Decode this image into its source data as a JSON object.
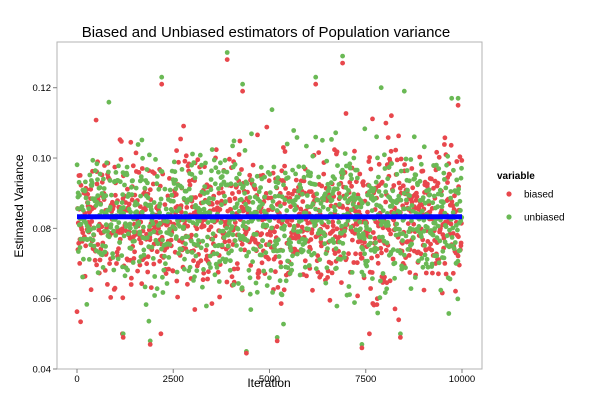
{
  "chart_data": {
    "type": "scatter",
    "title": "Biased and Unbiased estimators of Population variance",
    "xlabel": "Iteration",
    "ylabel": "Estimated Variance",
    "xlim": [
      0,
      10000
    ],
    "ylim": [
      0.04,
      0.133
    ],
    "x_ticks": [
      0,
      2500,
      5000,
      7500,
      10000
    ],
    "x_tick_labels": [
      "0",
      "2500",
      "5000",
      "7500",
      "10000"
    ],
    "y_ticks": [
      0.04,
      0.06,
      0.08,
      0.1,
      0.12
    ],
    "y_tick_labels": [
      "0.04",
      "0.06",
      "0.08",
      "0.10",
      "0.12"
    ],
    "grid": false,
    "legend": {
      "title": "variable",
      "position": "right",
      "entries": [
        {
          "name": "biased",
          "color": "#e8474c"
        },
        {
          "name": "unbiased",
          "color": "#6ab955"
        }
      ]
    },
    "series": [
      {
        "name": "biased",
        "color": "#e8474c",
        "center": 0.0825,
        "spread": 0.0095,
        "n_points": 10000
      },
      {
        "name": "unbiased",
        "color": "#6ab955",
        "center": 0.0833,
        "spread": 0.0095,
        "n_points": 10000
      }
    ],
    "reference_line": {
      "y": 0.0833,
      "color": "#0000ff"
    },
    "highlighted_points": [
      {
        "series": "unbiased",
        "x": 3900,
        "y": 0.13
      },
      {
        "series": "biased",
        "x": 3900,
        "y": 0.128
      },
      {
        "series": "unbiased",
        "x": 6900,
        "y": 0.129
      },
      {
        "series": "biased",
        "x": 6900,
        "y": 0.127
      },
      {
        "series": "unbiased",
        "x": 2200,
        "y": 0.123
      },
      {
        "series": "biased",
        "x": 2200,
        "y": 0.121
      },
      {
        "series": "unbiased",
        "x": 6200,
        "y": 0.123
      },
      {
        "series": "biased",
        "x": 6200,
        "y": 0.121
      },
      {
        "series": "unbiased",
        "x": 4300,
        "y": 0.121
      },
      {
        "series": "biased",
        "x": 4300,
        "y": 0.119
      },
      {
        "series": "unbiased",
        "x": 8500,
        "y": 0.119
      },
      {
        "series": "unbiased",
        "x": 7900,
        "y": 0.12
      },
      {
        "series": "unbiased",
        "x": 9900,
        "y": 0.117
      },
      {
        "series": "biased",
        "x": 9900,
        "y": 0.115
      },
      {
        "series": "unbiased",
        "x": 4400,
        "y": 0.045
      },
      {
        "series": "biased",
        "x": 4400,
        "y": 0.0445
      },
      {
        "series": "unbiased",
        "x": 7400,
        "y": 0.047
      },
      {
        "series": "biased",
        "x": 7400,
        "y": 0.046
      },
      {
        "series": "unbiased",
        "x": 1900,
        "y": 0.048
      },
      {
        "series": "biased",
        "x": 1900,
        "y": 0.047
      },
      {
        "series": "unbiased",
        "x": 5200,
        "y": 0.049
      },
      {
        "series": "biased",
        "x": 5200,
        "y": 0.048
      },
      {
        "series": "unbiased",
        "x": 1200,
        "y": 0.05
      },
      {
        "series": "biased",
        "x": 1200,
        "y": 0.049
      },
      {
        "series": "unbiased",
        "x": 8400,
        "y": 0.05
      },
      {
        "series": "biased",
        "x": 8400,
        "y": 0.049
      }
    ]
  }
}
